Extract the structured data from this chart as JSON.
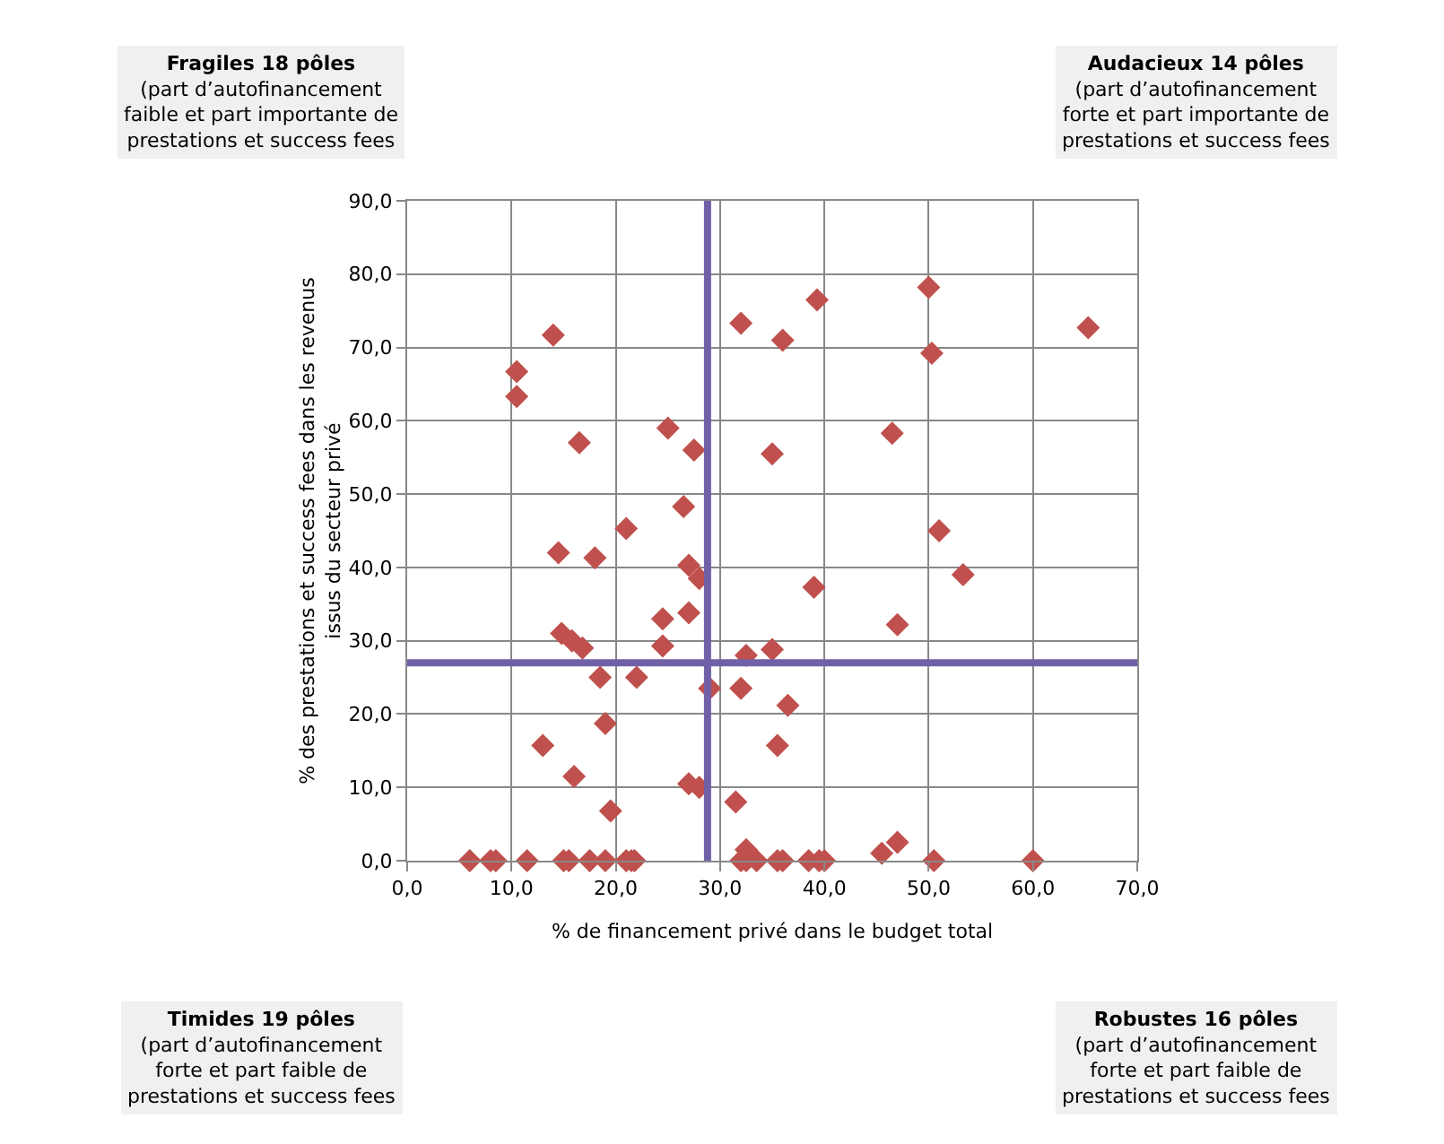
{
  "chart_data": {
    "type": "scatter",
    "xlabel": "% de financement privé dans le budget total",
    "ylabel": "% des prestations et success fees dans les revenus\nissus du secteur privé",
    "x": [
      10.5,
      10.5,
      14,
      16.5,
      25,
      27.5,
      26.5,
      21,
      14.5,
      18,
      27,
      28,
      14.8,
      15.8,
      16.8,
      24.5,
      27,
      24.5,
      18.5,
      22,
      29,
      13,
      19,
      16,
      27,
      28,
      19.5,
      32,
      36,
      39.3,
      35,
      32,
      32.5,
      35,
      36.5,
      35.5,
      31.5,
      46.5,
      50,
      50.3,
      51,
      53.3,
      39,
      47,
      65.3,
      6,
      8,
      8.5,
      11.5,
      15,
      15.5,
      17.5,
      19,
      21,
      21.5,
      21.8,
      32,
      32.5,
      33.5,
      35.5,
      36,
      38.5,
      39.5,
      40,
      50.5,
      60,
      32.5,
      45.5,
      47
    ],
    "series": [
      {
        "color": "#c0504d",
        "values": [
          66.7,
          63.3,
          71.7,
          57,
          59,
          56,
          48.3,
          45.3,
          42,
          41.3,
          40.3,
          38.5,
          31,
          30,
          29,
          33,
          33.8,
          29.3,
          25,
          25,
          23.5,
          15.7,
          18.7,
          11.5,
          10.5,
          10,
          6.8,
          73.3,
          71,
          76.5,
          55.5,
          23.5,
          28,
          28.8,
          21.2,
          15.7,
          8,
          58.3,
          78.2,
          69.2,
          45,
          39,
          37.3,
          32.2,
          72.7,
          0,
          0,
          0,
          0,
          0,
          0,
          0,
          0,
          0,
          0,
          0,
          0,
          0,
          0,
          0,
          0,
          0,
          0,
          0,
          0,
          0,
          1.5,
          1,
          2.5
        ]
      }
    ],
    "marker": "diamond",
    "xlim": [
      0,
      70
    ],
    "ylim": [
      0,
      90
    ],
    "xticks": [
      {
        "value": 0,
        "label": "0,0"
      },
      {
        "value": 10,
        "label": "10,0"
      },
      {
        "value": 20,
        "label": "20,0"
      },
      {
        "value": 30,
        "label": "30,0"
      },
      {
        "value": 40,
        "label": "40,0"
      },
      {
        "value": 50,
        "label": "50,0"
      },
      {
        "value": 60,
        "label": "60,0"
      },
      {
        "value": 70,
        "label": "70,0"
      }
    ],
    "yticks": [
      {
        "value": 0,
        "label": "0,0"
      },
      {
        "value": 10,
        "label": "10,0"
      },
      {
        "value": 20,
        "label": "20,0"
      },
      {
        "value": 30,
        "label": "30,0"
      },
      {
        "value": 40,
        "label": "40,0"
      },
      {
        "value": 50,
        "label": "50,0"
      },
      {
        "value": 60,
        "label": "60,0"
      },
      {
        "value": 70,
        "label": "70,0"
      },
      {
        "value": 80,
        "label": "80,0"
      },
      {
        "value": 90,
        "label": "90,0"
      }
    ],
    "grid": true,
    "ref_lines": [
      {
        "axis": "x",
        "value": 28.8,
        "color": "#7060a8"
      },
      {
        "axis": "y",
        "value": 27,
        "color": "#7060a8"
      }
    ],
    "annotations": [
      "Fragiles 18 pôles\n(part d’autofinancement\nfaible et part importante de\nprestations et success fees",
      "Audacieux 14 pôles\n(part d’autofinancement\nforte et part importante de\nprestations et success fees",
      "Timides 19 pôles\n(part d’autofinancement\nforte et part faible de\nprestations et success fees",
      "Robustes 16 pôles\n(part d’autofinancement\nforte et part faible de\nprestations et success fees"
    ]
  }
}
